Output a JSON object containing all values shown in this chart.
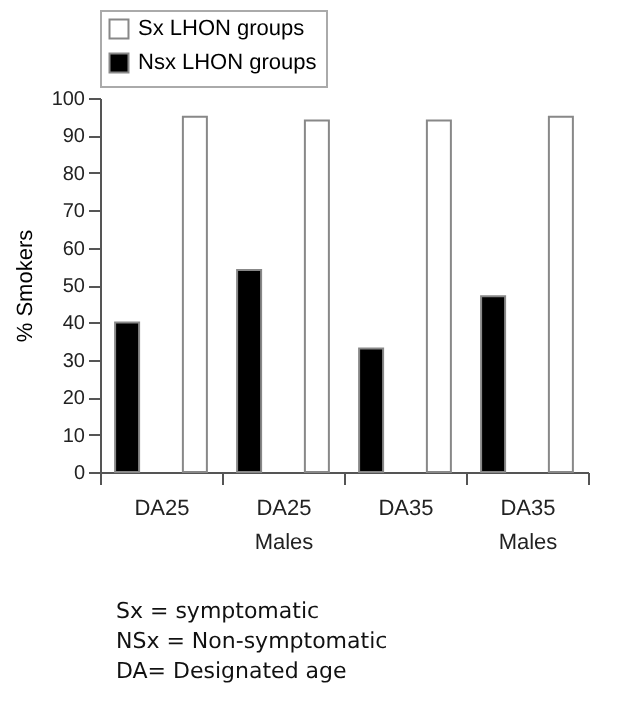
{
  "chart_data": {
    "type": "bar",
    "ylabel": "% Smokers",
    "categories": [
      "DA25",
      "DA25\nMales",
      "DA35",
      "DA35\nMales"
    ],
    "series": [
      {
        "name": "Sx LHON groups",
        "color": "#ffffff",
        "values": [
          95,
          94,
          94,
          95
        ]
      },
      {
        "name": "Nsx LHON groups",
        "color": "#000000",
        "values": [
          40,
          54,
          33,
          47
        ]
      }
    ],
    "ylim": [
      0,
      100
    ],
    "yticks": [
      0,
      10,
      20,
      30,
      40,
      50,
      60,
      70,
      80,
      90,
      100
    ],
    "grid": false,
    "legend": "top",
    "annotations": [
      "Sx = symptomatic",
      "NSx = Non-symptomatic",
      "DA= Designated age"
    ]
  }
}
